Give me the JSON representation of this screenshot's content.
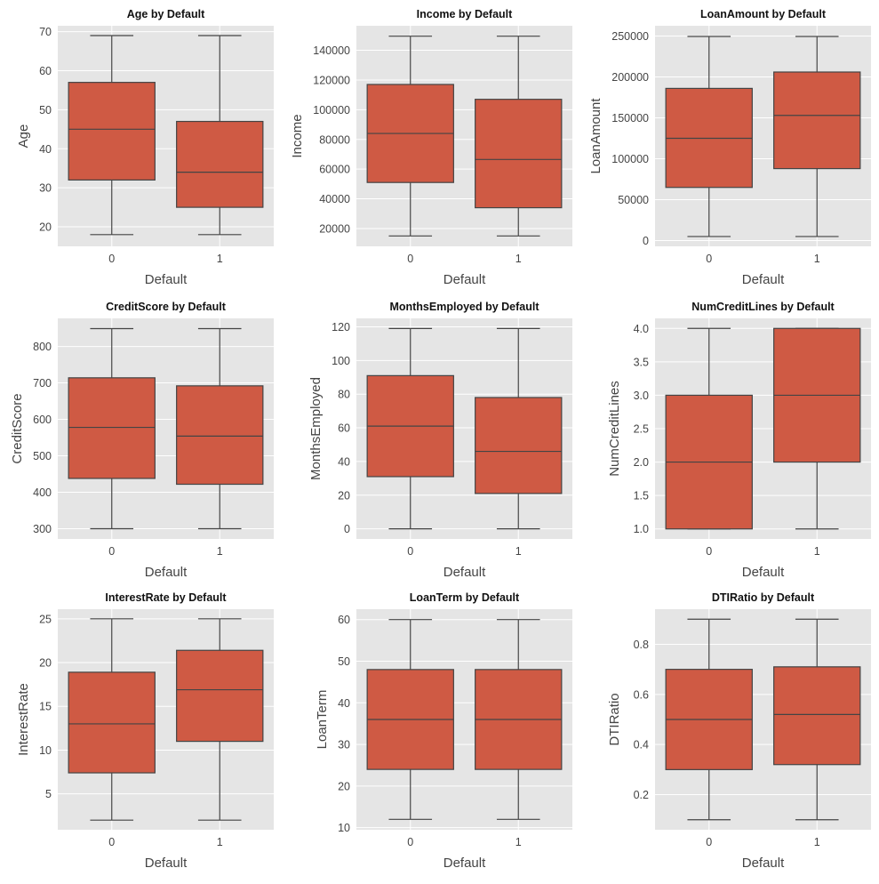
{
  "figure": {
    "background": "#ffffff",
    "panel_bg": "#e5e5e5",
    "grid_color": "#ffffff",
    "box_fill": "#cf5a44",
    "line_color": "#444444"
  },
  "chart_data": [
    {
      "type": "box",
      "title": "Age by Default",
      "xlabel": "Default",
      "ylabel": "Age",
      "categories": [
        "0",
        "1"
      ],
      "ylim": [
        15,
        71.5
      ],
      "yticks": [
        20,
        30,
        40,
        50,
        60,
        70
      ],
      "boxes": [
        {
          "whislo": 18,
          "q1": 32,
          "med": 45,
          "q3": 57,
          "whishi": 69
        },
        {
          "whislo": 18,
          "q1": 25,
          "med": 34,
          "q3": 47,
          "whishi": 69
        }
      ]
    },
    {
      "type": "box",
      "title": "Income by Default",
      "xlabel": "Default",
      "ylabel": "Income",
      "categories": [
        "0",
        "1"
      ],
      "ylim": [
        8000,
        156500
      ],
      "yticks": [
        20000,
        40000,
        60000,
        80000,
        100000,
        120000,
        140000
      ],
      "boxes": [
        {
          "whislo": 15000,
          "q1": 51000,
          "med": 84000,
          "q3": 117000,
          "whishi": 149500
        },
        {
          "whislo": 15000,
          "q1": 34000,
          "med": 66500,
          "q3": 107000,
          "whishi": 149500
        }
      ]
    },
    {
      "type": "box",
      "title": "LoanAmount by Default",
      "xlabel": "Default",
      "ylabel": "LoanAmount",
      "categories": [
        "0",
        "1"
      ],
      "ylim": [
        -7000,
        262500
      ],
      "yticks": [
        0,
        50000,
        100000,
        150000,
        200000,
        250000
      ],
      "boxes": [
        {
          "whislo": 5000,
          "q1": 65000,
          "med": 125000,
          "q3": 186000,
          "whishi": 249500
        },
        {
          "whislo": 5000,
          "q1": 88000,
          "med": 153000,
          "q3": 206000,
          "whishi": 249500
        }
      ]
    },
    {
      "type": "box",
      "title": "CreditScore by Default",
      "xlabel": "Default",
      "ylabel": "CreditScore",
      "categories": [
        "0",
        "1"
      ],
      "ylim": [
        272,
        877
      ],
      "yticks": [
        300,
        400,
        500,
        600,
        700,
        800
      ],
      "boxes": [
        {
          "whislo": 300,
          "q1": 438,
          "med": 578,
          "q3": 714,
          "whishi": 849
        },
        {
          "whislo": 300,
          "q1": 422,
          "med": 554,
          "q3": 692,
          "whishi": 849
        }
      ]
    },
    {
      "type": "box",
      "title": "MonthsEmployed by Default",
      "xlabel": "Default",
      "ylabel": "MonthsEmployed",
      "categories": [
        "0",
        "1"
      ],
      "ylim": [
        -6,
        125
      ],
      "yticks": [
        0,
        20,
        40,
        60,
        80,
        100,
        120
      ],
      "boxes": [
        {
          "whislo": 0,
          "q1": 31,
          "med": 61,
          "q3": 91,
          "whishi": 119
        },
        {
          "whislo": 0,
          "q1": 21,
          "med": 46,
          "q3": 78,
          "whishi": 119
        }
      ]
    },
    {
      "type": "box",
      "title": "NumCreditLines by Default",
      "xlabel": "Default",
      "ylabel": "NumCreditLines",
      "categories": [
        "0",
        "1"
      ],
      "ylim": [
        0.85,
        4.15
      ],
      "yticks": [
        1.0,
        1.5,
        2.0,
        2.5,
        3.0,
        3.5,
        4.0
      ],
      "tick_decimals": 1,
      "boxes": [
        {
          "whislo": 1,
          "q1": 1,
          "med": 2,
          "q3": 3,
          "whishi": 4
        },
        {
          "whislo": 1,
          "q1": 2,
          "med": 3,
          "q3": 4,
          "whishi": 4
        }
      ]
    },
    {
      "type": "box",
      "title": "InterestRate by Default",
      "xlabel": "Default",
      "ylabel": "InterestRate",
      "categories": [
        "0",
        "1"
      ],
      "ylim": [
        0.9,
        26.1
      ],
      "yticks": [
        5,
        10,
        15,
        20,
        25
      ],
      "boxes": [
        {
          "whislo": 2.0,
          "q1": 7.4,
          "med": 13.0,
          "q3": 18.9,
          "whishi": 25.0
        },
        {
          "whislo": 2.0,
          "q1": 11.0,
          "med": 16.9,
          "q3": 21.4,
          "whishi": 25.0
        }
      ]
    },
    {
      "type": "box",
      "title": "LoanTerm by Default",
      "xlabel": "Default",
      "ylabel": "LoanTerm",
      "categories": [
        "0",
        "1"
      ],
      "ylim": [
        9.5,
        62.5
      ],
      "yticks": [
        10,
        20,
        30,
        40,
        50,
        60
      ],
      "boxes": [
        {
          "whislo": 12,
          "q1": 24,
          "med": 36,
          "q3": 48,
          "whishi": 60
        },
        {
          "whislo": 12,
          "q1": 24,
          "med": 36,
          "q3": 48,
          "whishi": 60
        }
      ]
    },
    {
      "type": "box",
      "title": "DTIRatio by Default",
      "xlabel": "Default",
      "ylabel": "DTIRatio",
      "categories": [
        "0",
        "1"
      ],
      "ylim": [
        0.06,
        0.94
      ],
      "yticks": [
        0.2,
        0.4,
        0.6,
        0.8
      ],
      "tick_decimals": 1,
      "boxes": [
        {
          "whislo": 0.1,
          "q1": 0.3,
          "med": 0.5,
          "q3": 0.7,
          "whishi": 0.9
        },
        {
          "whislo": 0.1,
          "q1": 0.32,
          "med": 0.52,
          "q3": 0.71,
          "whishi": 0.9
        }
      ]
    }
  ]
}
